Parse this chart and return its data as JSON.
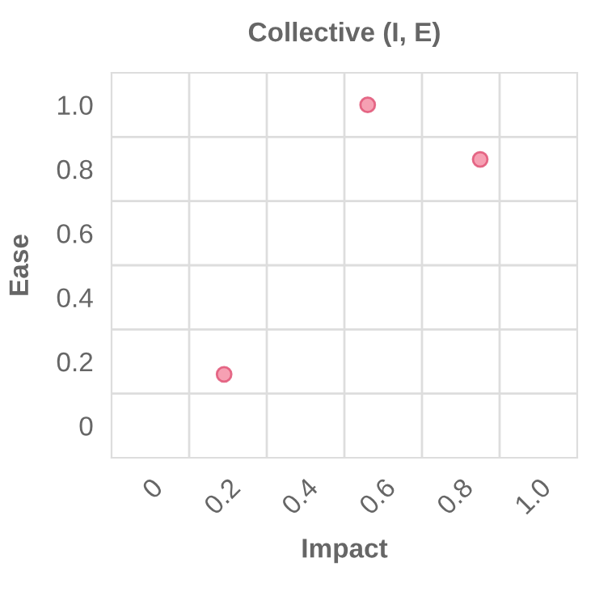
{
  "chart_data": {
    "type": "scatter",
    "title": "Collective (I, E)",
    "xlabel": "Impact",
    "ylabel": "Ease",
    "x": [
      0.19,
      0.56,
      0.85
    ],
    "series": [
      {
        "color": "#f48fa6",
        "values": [
          0.16,
          1.0,
          0.83
        ]
      }
    ],
    "xlim": [
      -0.1,
      1.1
    ],
    "ylim": [
      -0.1,
      1.1
    ],
    "xticks": [
      {
        "value": 0,
        "label": "0"
      },
      0.2,
      0.4,
      0.6,
      0.8,
      {
        "value": 1.0,
        "label": "1.0"
      }
    ],
    "yticks": [
      {
        "value": 0,
        "label": "0"
      },
      0.2,
      0.4,
      0.6,
      0.8,
      {
        "value": 1.0,
        "label": "1.0"
      }
    ],
    "grid": true,
    "marker": "circle"
  }
}
